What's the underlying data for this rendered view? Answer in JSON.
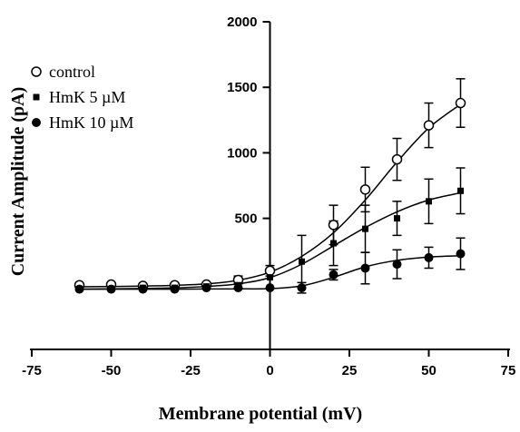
{
  "chart_data": {
    "type": "scatter",
    "title": "",
    "xlabel": "Membrane potential (mV)",
    "ylabel": "Current Amplitude (pA)",
    "xlim": [
      -75,
      75
    ],
    "ylim": [
      -500,
      2000
    ],
    "x_ticks": [
      -75,
      -50,
      -25,
      0,
      25,
      50,
      75
    ],
    "y_ticks": [
      500,
      1000,
      1500,
      2000
    ],
    "x_tick_labels": [
      "-75",
      "-50",
      "-25",
      "0",
      "25",
      "50",
      "75"
    ],
    "y_tick_labels": [
      "500",
      "1000",
      "1500",
      "2000"
    ],
    "legend_position": "top-left",
    "grid": false,
    "x": [
      -60,
      -50,
      -40,
      -30,
      -20,
      -10,
      0,
      10,
      20,
      30,
      40,
      50,
      60
    ],
    "series": [
      {
        "name": "control",
        "marker": "open-circle",
        "values": [
          -10,
          -5,
          -15,
          -10,
          -5,
          30,
          100,
          null,
          450,
          720,
          950,
          1210,
          1380
        ],
        "errors": [
          0,
          0,
          0,
          0,
          0,
          30,
          40,
          null,
          150,
          170,
          160,
          170,
          185
        ],
        "fit": [
          -22,
          -20,
          -17,
          -11,
          0,
          28,
          90,
          210,
          390,
          640,
          930,
          1190,
          1370
        ]
      },
      {
        "name": "HmK 5 µM",
        "marker": "filled-square",
        "values": [
          -40,
          -40,
          -30,
          -30,
          -20,
          -10,
          50,
          170,
          310,
          420,
          500,
          630,
          710
        ],
        "errors": [
          0,
          0,
          0,
          0,
          0,
          0,
          0,
          200,
          170,
          180,
          130,
          170,
          175
        ],
        "fit": [
          -40,
          -38,
          -35,
          -30,
          -20,
          0,
          48,
          150,
          290,
          430,
          550,
          640,
          695
        ]
      },
      {
        "name": "HmK 10 µM",
        "marker": "filled-circle",
        "values": [
          -40,
          -40,
          -40,
          -40,
          -30,
          -30,
          -30,
          -30,
          70,
          120,
          150,
          200,
          230
        ],
        "errors": [
          0,
          0,
          0,
          0,
          0,
          0,
          0,
          40,
          40,
          120,
          110,
          80,
          120
        ],
        "fit": [
          -40,
          -40,
          -40,
          -40,
          -39,
          -38,
          -36,
          -15,
          50,
          130,
          180,
          205,
          215
        ]
      }
    ]
  }
}
